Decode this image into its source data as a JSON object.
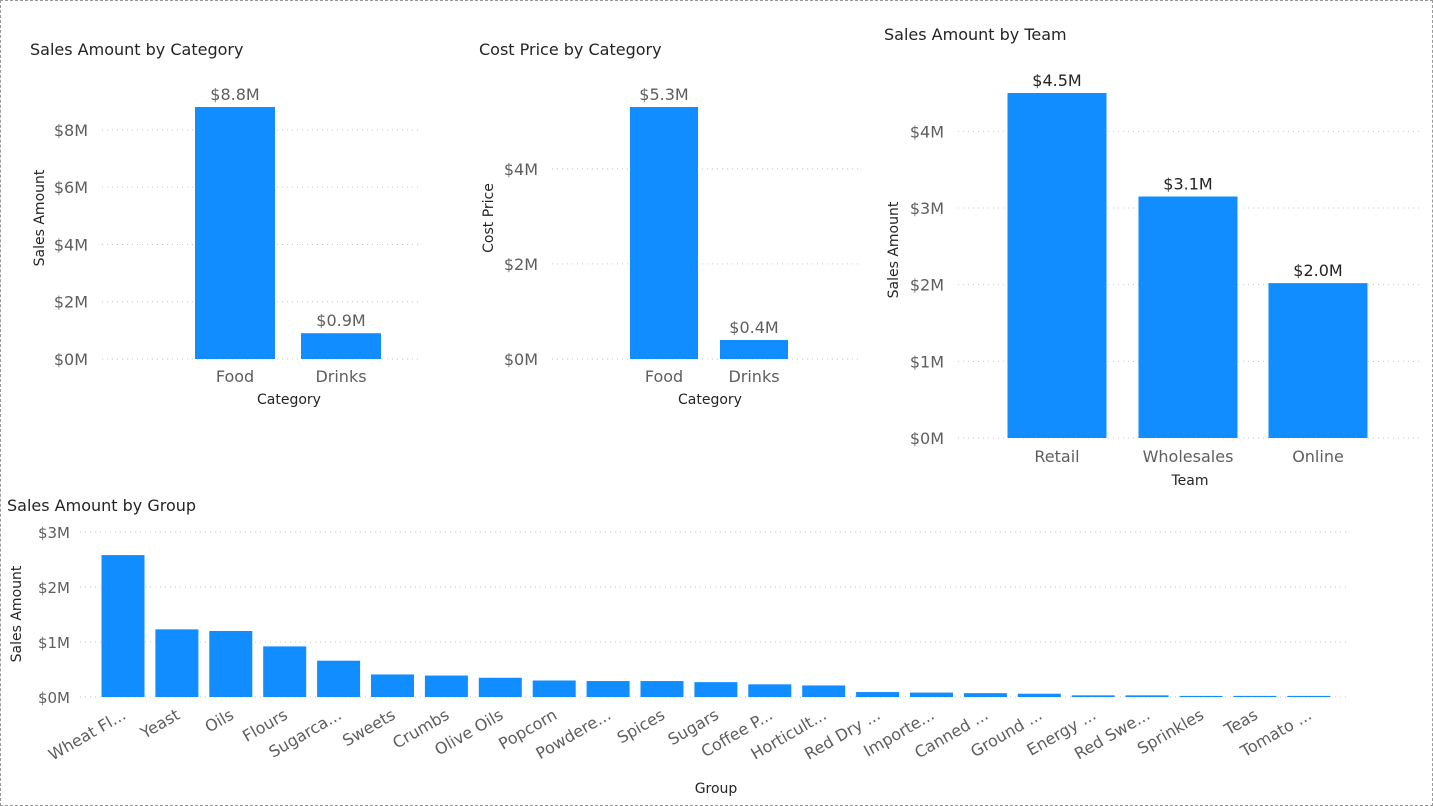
{
  "chart_data": [
    {
      "type": "bar",
      "title": "Sales Amount by Category",
      "xlabel": "Category",
      "ylabel": "Sales Amount",
      "categories": [
        "Food",
        "Drinks"
      ],
      "values": [
        8.8,
        0.9
      ],
      "data_labels": [
        "$8.8M",
        "$0.9M"
      ],
      "yticks": [
        0,
        2,
        4,
        6,
        8
      ],
      "ytick_labels": [
        "$0M",
        "$2M",
        "$4M",
        "$6M",
        "$8M"
      ],
      "ylim": [
        0,
        8.8
      ],
      "unit": "millions USD",
      "grid": true
    },
    {
      "type": "bar",
      "title": "Cost Price by Category",
      "xlabel": "Category",
      "ylabel": "Cost Price",
      "categories": [
        "Food",
        "Drinks"
      ],
      "values": [
        5.3,
        0.4
      ],
      "data_labels": [
        "$5.3M",
        "$0.4M"
      ],
      "yticks": [
        0,
        2,
        4
      ],
      "ytick_labels": [
        "$0M",
        "$2M",
        "$4M"
      ],
      "ylim": [
        0,
        5.3
      ],
      "unit": "millions USD",
      "grid": true
    },
    {
      "type": "bar",
      "title": "Sales Amount by Team",
      "xlabel": "Team",
      "ylabel": "Sales Amount",
      "categories": [
        "Retail",
        "Wholesales",
        "Online"
      ],
      "values": [
        4.5,
        3.15,
        2.02
      ],
      "data_labels": [
        "$4.5M",
        "$3.1M",
        "$2.0M"
      ],
      "yticks": [
        0,
        1,
        2,
        3,
        4
      ],
      "ytick_labels": [
        "$0M",
        "$1M",
        "$2M",
        "$3M",
        "$4M"
      ],
      "ylim": [
        0,
        4.5
      ],
      "unit": "millions USD",
      "grid": true
    },
    {
      "type": "bar",
      "title": "Sales Amount by Group",
      "xlabel": "Group",
      "ylabel": "Sales Amount",
      "categories": [
        "Wheat Fl...",
        "Yeast",
        "Oils",
        "Flours",
        "Sugarca...",
        "Sweets",
        "Crumbs",
        "Olive Oils",
        "Popcorn",
        "Powdere...",
        "Spices",
        "Sugars",
        "Coffee P...",
        "Horticult...",
        "Red Dry ...",
        "Importe...",
        "Canned ...",
        "Ground ...",
        "Energy ...",
        "Red Swe...",
        "Sprinkles",
        "Teas",
        "Tomato ..."
      ],
      "values": [
        2.58,
        1.23,
        1.2,
        0.92,
        0.66,
        0.41,
        0.39,
        0.35,
        0.3,
        0.29,
        0.29,
        0.27,
        0.23,
        0.21,
        0.09,
        0.08,
        0.07,
        0.06,
        0.03,
        0.03,
        0.02,
        0.02,
        0.02
      ],
      "yticks": [
        0,
        1,
        2,
        3
      ],
      "ytick_labels": [
        "$0M",
        "$1M",
        "$2M",
        "$3M"
      ],
      "ylim": [
        0,
        3
      ],
      "unit": "millions USD",
      "grid": true
    }
  ],
  "colors": {
    "bar": "#118dff",
    "grid": "#c8c6c4",
    "tick": "#605e5c",
    "title": "#252423"
  }
}
